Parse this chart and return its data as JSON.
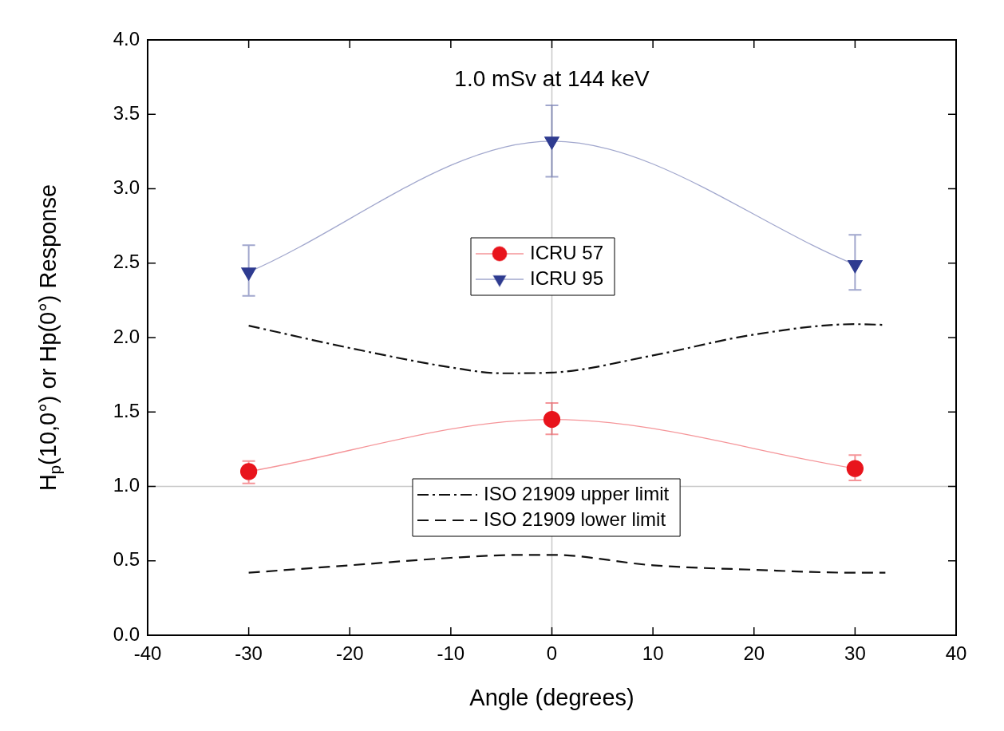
{
  "chart_data": {
    "type": "line",
    "xlabel": "Angle (degrees)",
    "ylabel": "H$_{p}$(10,0°) or Hp(0°) Response",
    "annotations": [
      "1.0 mSv at 144 keV"
    ],
    "xlim": [
      -40,
      40
    ],
    "xticks": [
      -40,
      -30,
      -20,
      -10,
      0,
      10,
      20,
      30,
      40
    ],
    "ylim": [
      0,
      4
    ],
    "yticks": [
      {
        "value": 0,
        "label": "0.0"
      },
      {
        "value": 0.5,
        "label": "0.5"
      },
      {
        "value": 1,
        "label": "1.0"
      },
      {
        "value": 1.5,
        "label": "1.5"
      },
      {
        "value": 2,
        "label": "2.0"
      },
      {
        "value": 2.5,
        "label": "2.5"
      },
      {
        "value": 3,
        "label": "3.0"
      },
      {
        "value": 3.5,
        "label": "3.5"
      },
      {
        "value": 4,
        "label": "4.0"
      }
    ],
    "grid": false,
    "legend": "center",
    "ref_lines": [
      {
        "axis": "y",
        "value": 1,
        "color": "#c8c8c8"
      },
      {
        "axis": "x",
        "value": 0,
        "color": "#c8c8c8"
      }
    ],
    "series": [
      {
        "name": "ICRU 57",
        "color": "#e8141c",
        "marker": "circle",
        "x": [
          -30,
          0,
          30
        ],
        "values": [
          1.1,
          1.45,
          1.12
        ],
        "errors": [
          [
            1.02,
            1.17
          ],
          [
            1.35,
            1.56
          ],
          [
            1.04,
            1.21
          ]
        ]
      },
      {
        "name": "ICRU 95",
        "color": "#2e3b90",
        "marker": "triangle",
        "x": [
          -30,
          0,
          30
        ],
        "values": [
          2.44,
          3.32,
          2.49
        ],
        "errors": [
          [
            2.28,
            2.62
          ],
          [
            3.08,
            3.56
          ],
          [
            2.32,
            2.69
          ]
        ]
      },
      {
        "name": "ISO 21909 upper limit",
        "color": "#111111",
        "marker": "none",
        "line_style": "dashdot",
        "x": [
          -30,
          -20,
          -10,
          -5,
          0,
          10,
          20,
          30,
          33
        ],
        "values": [
          2.08,
          1.93,
          1.8,
          1.76,
          1.765,
          1.88,
          2.02,
          2.09,
          2.085
        ]
      },
      {
        "name": "ISO 21909 lower limit",
        "color": "#111111",
        "marker": "none",
        "line_style": "dashed",
        "x": [
          -30,
          -20,
          -10,
          -3,
          0,
          10,
          20,
          30,
          33
        ],
        "values": [
          0.42,
          0.47,
          0.52,
          0.54,
          0.54,
          0.47,
          0.44,
          0.42,
          0.42
        ]
      }
    ]
  }
}
